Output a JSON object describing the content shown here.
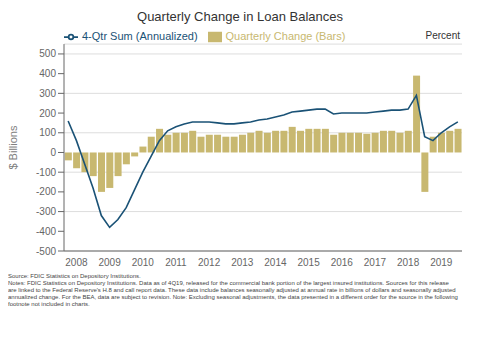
{
  "chart_data": {
    "type": "bar",
    "title": "Quarterly Change in Loan Balances",
    "ylabel": "$ Billions",
    "categories": [
      null,
      "2008",
      null,
      null,
      null,
      "2009",
      null,
      null,
      null,
      "2010",
      null,
      null,
      null,
      "2011",
      null,
      null,
      null,
      "2012",
      null,
      null,
      null,
      "2013",
      null,
      null,
      null,
      "2014",
      null,
      null,
      null,
      "2015",
      null,
      null,
      null,
      "2016",
      null,
      null,
      null,
      "2017",
      null,
      null,
      null,
      "2018",
      null,
      null,
      null,
      "2019",
      null,
      null
    ],
    "series": [
      {
        "name": "Quarterly Change (Bars)",
        "type": "bar",
        "color": "#c8b870",
        "values": [
          -40,
          -80,
          -100,
          -120,
          -200,
          -180,
          -120,
          -60,
          -20,
          30,
          80,
          120,
          90,
          100,
          100,
          110,
          80,
          90,
          90,
          80,
          80,
          90,
          100,
          110,
          100,
          110,
          110,
          130,
          110,
          120,
          120,
          120,
          90,
          100,
          100,
          100,
          95,
          100,
          110,
          110,
          100,
          110,
          390,
          -200,
          80,
          100,
          110,
          120
        ]
      },
      {
        "name": "4-Qtr Sum (Annualized)",
        "type": "line",
        "color": "#1a5276",
        "values": [
          160,
          60,
          -60,
          -180,
          -320,
          -380,
          -340,
          -280,
          -190,
          -100,
          -20,
          60,
          110,
          130,
          145,
          155,
          155,
          155,
          150,
          145,
          145,
          150,
          155,
          165,
          170,
          180,
          190,
          205,
          210,
          215,
          220,
          220,
          195,
          200,
          200,
          200,
          200,
          205,
          210,
          215,
          215,
          220,
          290,
          80,
          60,
          100,
          130,
          155
        ]
      }
    ],
    "ylim": [
      -500,
      550
    ],
    "yticks": [
      -500,
      -400,
      -300,
      -200,
      -100,
      0,
      100,
      200,
      300,
      400,
      500
    ],
    "grid": true,
    "legend": "upper left",
    "annotations": [
      "Percent"
    ],
    "footnote": [
      "Source: FDIC Statistics on Depository Institutions.",
      "Notes: FDIC Statistics on Depository Institutions. Data as of 4Q19, released for the commercial bank portion of the largest insured institutions. Sources for this release",
      "are linked to the Federal Reserve's H.8 and call report data. These data include balances seasonally adjusted at annual rate in billions of dollars and seasonally adjusted",
      "annualized change. For the BEA, data are subject to revision. Note: Excluding seasonal adjustments, the data presented in a different order for the source in the following",
      "footnote not included in charts."
    ]
  }
}
